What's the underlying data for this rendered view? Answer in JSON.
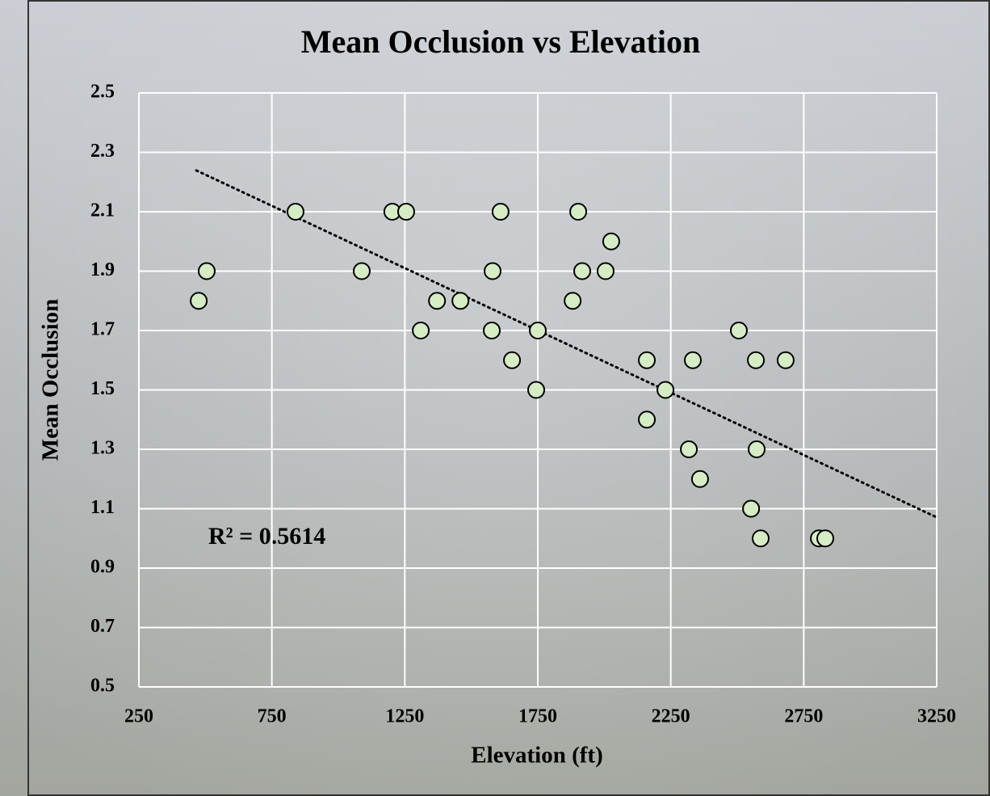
{
  "chart_data": {
    "type": "scatter",
    "title": "Mean Occlusion vs Elevation",
    "x_label": "Elevation (ft)",
    "y_label": "Mean Occlusion",
    "annotation": "R² = 0.5614",
    "x": [
      475,
      505,
      839,
      1088,
      1203,
      1255,
      1310,
      1371,
      1459,
      1580,
      1577,
      1610,
      1653,
      1744,
      1750,
      1881,
      1902,
      1917,
      2005,
      2026,
      2160,
      2160,
      2230,
      2318,
      2333,
      2360,
      2506,
      2552,
      2570,
      2573,
      2588,
      2682,
      2807,
      2831
    ],
    "series": [
      {
        "name": "Mean Occlusion",
        "color": "#d6ecc4",
        "values": [
          1.8,
          1.9,
          2.1,
          1.9,
          2.1,
          2.1,
          1.7,
          1.8,
          1.8,
          1.9,
          1.7,
          2.1,
          1.6,
          1.5,
          1.7,
          1.8,
          2.1,
          1.9,
          1.9,
          2.0,
          1.6,
          1.4,
          1.5,
          1.3,
          1.6,
          1.2,
          1.7,
          1.1,
          1.6,
          1.3,
          1.0,
          1.6,
          1.0,
          1.0
        ]
      }
    ],
    "trendline": {
      "x": [
        466,
        3250
      ],
      "y": [
        2.239,
        1.071
      ],
      "color": "#000000"
    },
    "xlim": [
      250,
      3250
    ],
    "xticks": [
      250,
      750,
      1250,
      1750,
      2250,
      2750,
      3250
    ],
    "ylim": [
      0.5,
      2.5
    ],
    "yticks": [
      0.5,
      0.7,
      0.9,
      1.1,
      1.3,
      1.5,
      1.7,
      1.9,
      2.1,
      2.3,
      2.5
    ],
    "grid": true
  }
}
